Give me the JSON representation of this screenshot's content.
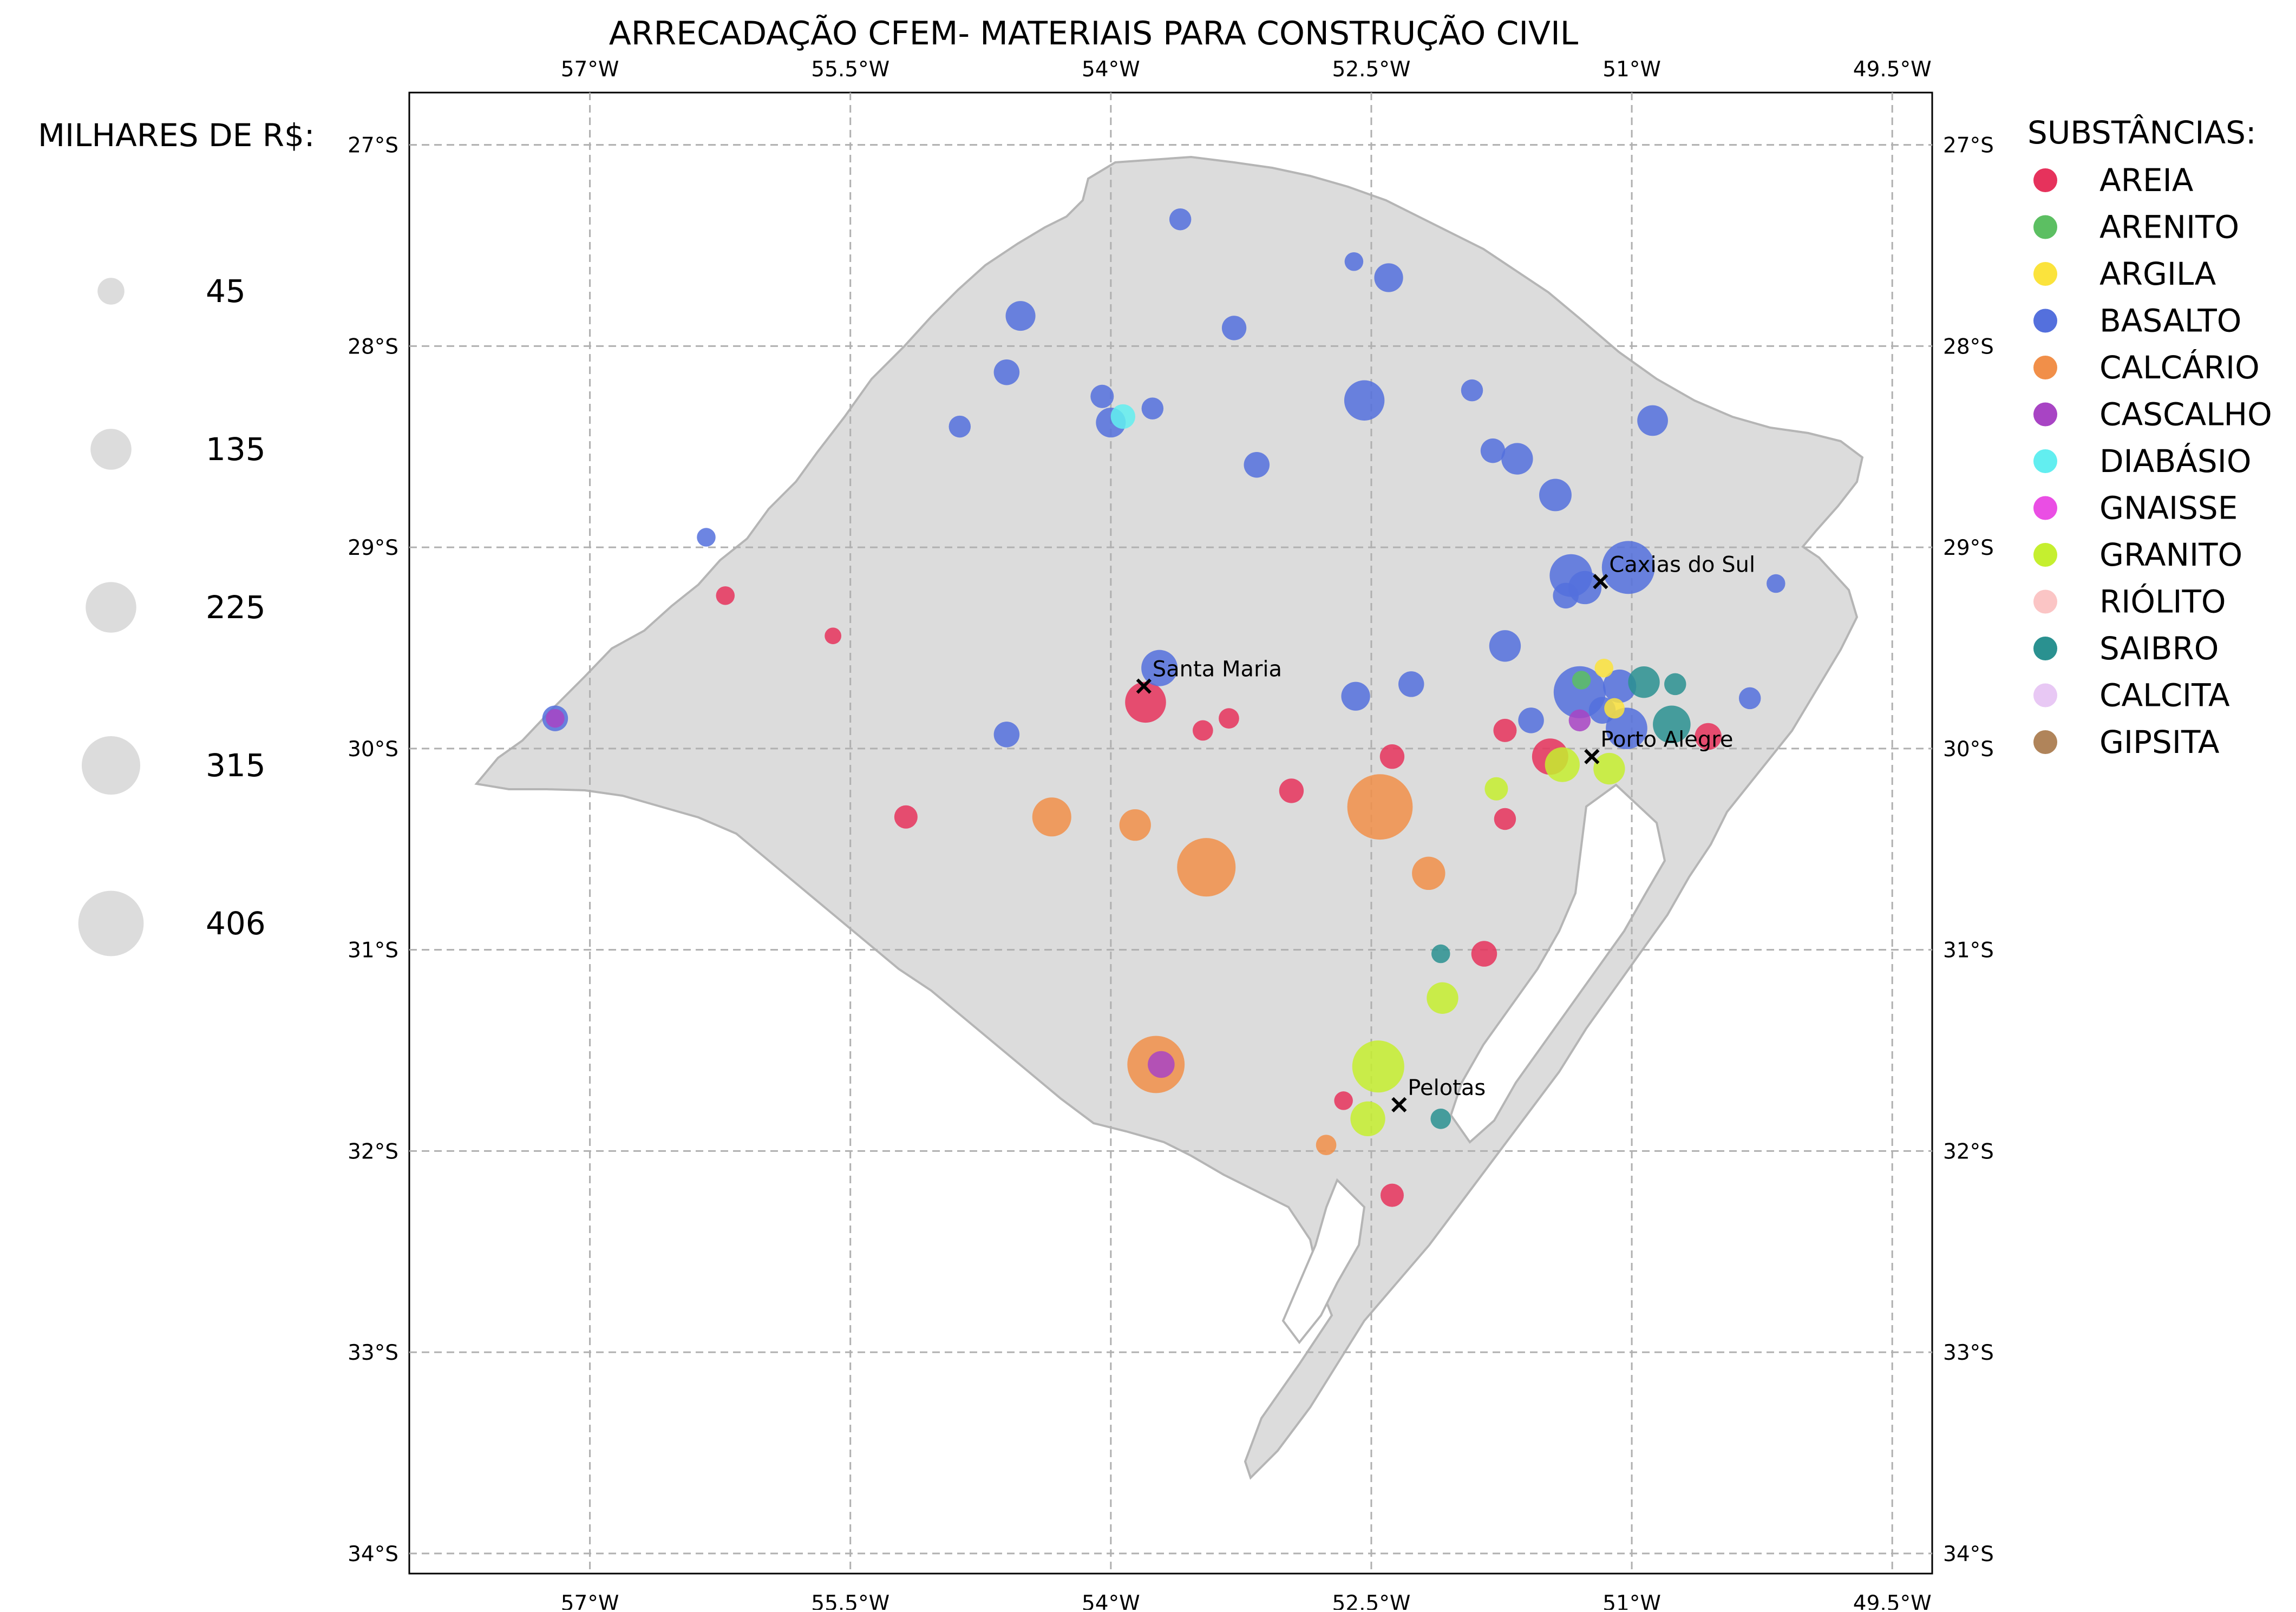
{
  "title": "ARRECADAÇÃO CFEM- MATERIAIS PARA CONSTRUÇÃO CIVIL",
  "x_ticks": [
    "57°W",
    "55.5°W",
    "54°W",
    "52.5°W",
    "51°W",
    "49.5°W"
  ],
  "y_ticks": [
    "27°S",
    "28°S",
    "29°S",
    "30°S",
    "31°S",
    "32°S",
    "33°S",
    "34°S"
  ],
  "axis_ranges": {
    "lon": [
      -58.04,
      -49.27
    ],
    "lat": [
      -34.1,
      -26.74
    ]
  },
  "grid": true,
  "size_legend": {
    "title": "MILHARES DE R$:",
    "items": [
      {
        "label": "45",
        "value": 45
      },
      {
        "label": "135",
        "value": 135
      },
      {
        "label": "225",
        "value": 225
      },
      {
        "label": "315",
        "value": 315
      },
      {
        "label": "406",
        "value": 406
      }
    ]
  },
  "substance_legend": {
    "title": "SUBSTÂNCIAS:",
    "items": [
      {
        "label": "AREIA",
        "color": "#e6325c"
      },
      {
        "label": "ARENITO",
        "color": "#5cbf62"
      },
      {
        "label": "ARGILA",
        "color": "#fbe33c"
      },
      {
        "label": "BASALTO",
        "color": "#5470dd"
      },
      {
        "label": "CALCÁRIO",
        "color": "#f18f49"
      },
      {
        "label": "CASCALHO",
        "color": "#a844c4"
      },
      {
        "label": "DIABÁSIO",
        "color": "#62eef0"
      },
      {
        "label": "GNAISSE",
        "color": "#ea4ee4"
      },
      {
        "label": "GRANITO",
        "color": "#c5ef2f"
      },
      {
        "label": "RIÓLITO",
        "color": "#fbc5c5"
      },
      {
        "label": "SAIBRO",
        "color": "#2a9190"
      },
      {
        "label": "CALCITA",
        "color": "#e8c8f4"
      },
      {
        "label": "GIPSITA",
        "color": "#b0845a"
      }
    ]
  },
  "cities": [
    {
      "name": "Caxias do Sul",
      "lon": -51.18,
      "lat": -29.17
    },
    {
      "name": "Santa Maria",
      "lon": -53.81,
      "lat": -29.69
    },
    {
      "name": "Porto Alegre",
      "lon": -51.23,
      "lat": -30.04
    },
    {
      "name": "Pelotas",
      "lon": -52.34,
      "lat": -31.77
    }
  ],
  "points": [
    {
      "s": "BASALTO",
      "lon": -53.6,
      "lat": -27.37,
      "v": 25
    },
    {
      "s": "BASALTO",
      "lon": -52.6,
      "lat": -27.58,
      "v": 15
    },
    {
      "s": "BASALTO",
      "lon": -52.4,
      "lat": -27.66,
      "v": 55
    },
    {
      "s": "BASALTO",
      "lon": -54.52,
      "lat": -27.85,
      "v": 60
    },
    {
      "s": "BASALTO",
      "lon": -53.29,
      "lat": -27.91,
      "v": 35
    },
    {
      "s": "BASALTO",
      "lon": -54.6,
      "lat": -28.13,
      "v": 40
    },
    {
      "s": "BASALTO",
      "lon": -54.0,
      "lat": -28.38,
      "v": 60
    },
    {
      "s": "BASALTO",
      "lon": -53.76,
      "lat": -28.31,
      "v": 25
    },
    {
      "s": "BASALTO",
      "lon": -54.05,
      "lat": -28.25,
      "v": 30
    },
    {
      "s": "BASALTO",
      "lon": -54.87,
      "lat": -28.4,
      "v": 25
    },
    {
      "s": "BASALTO",
      "lon": -52.54,
      "lat": -28.27,
      "v": 130
    },
    {
      "s": "BASALTO",
      "lon": -53.16,
      "lat": -28.59,
      "v": 40
    },
    {
      "s": "BASALTO",
      "lon": -51.92,
      "lat": -28.22,
      "v": 25
    },
    {
      "s": "BASALTO",
      "lon": -51.66,
      "lat": -28.56,
      "v": 70
    },
    {
      "s": "BASALTO",
      "lon": -51.8,
      "lat": -28.52,
      "v": 35
    },
    {
      "s": "BASALTO",
      "lon": -51.44,
      "lat": -28.74,
      "v": 75
    },
    {
      "s": "BASALTO",
      "lon": -51.35,
      "lat": -29.14,
      "v": 150
    },
    {
      "s": "BASALTO",
      "lon": -51.02,
      "lat": -29.1,
      "v": 250
    },
    {
      "s": "BASALTO",
      "lon": -51.27,
      "lat": -29.2,
      "v": 80
    },
    {
      "s": "BASALTO",
      "lon": -50.88,
      "lat": -28.37,
      "v": 65
    },
    {
      "s": "BASALTO",
      "lon": -51.58,
      "lat": -29.86,
      "v": 40
    },
    {
      "s": "BASALTO",
      "lon": -51.17,
      "lat": -29.81,
      "v": 45
    },
    {
      "s": "BASALTO",
      "lon": -51.3,
      "lat": -29.72,
      "v": 240
    },
    {
      "s": "BASALTO",
      "lon": -51.07,
      "lat": -29.69,
      "v": 80
    },
    {
      "s": "BASALTO",
      "lon": -51.03,
      "lat": -29.9,
      "v": 140
    },
    {
      "s": "BASALTO",
      "lon": -51.38,
      "lat": -29.24,
      "v": 40
    },
    {
      "s": "BASALTO",
      "lon": -51.73,
      "lat": -29.49,
      "v": 70
    },
    {
      "s": "BASALTO",
      "lon": -52.27,
      "lat": -29.68,
      "v": 40
    },
    {
      "s": "BASALTO",
      "lon": -52.59,
      "lat": -29.74,
      "v": 55
    },
    {
      "s": "BASALTO",
      "lon": -53.72,
      "lat": -29.6,
      "v": 100
    },
    {
      "s": "BASALTO",
      "lon": -56.33,
      "lat": -28.95,
      "v": 15
    },
    {
      "s": "BASALTO",
      "lon": -50.32,
      "lat": -29.75,
      "v": 25
    },
    {
      "s": "BASALTO",
      "lon": -50.17,
      "lat": -29.18,
      "v": 15
    },
    {
      "s": "BASALTO",
      "lon": -54.6,
      "lat": -29.93,
      "v": 40
    },
    {
      "s": "BASALTO",
      "lon": -57.2,
      "lat": -29.85,
      "v": 40
    },
    {
      "s": "AREIA",
      "lon": -53.8,
      "lat": -29.77,
      "v": 135
    },
    {
      "s": "AREIA",
      "lon": -51.47,
      "lat": -30.04,
      "v": 100
    },
    {
      "s": "AREIA",
      "lon": -50.56,
      "lat": -29.94,
      "v": 45
    },
    {
      "s": "AREIA",
      "lon": -52.38,
      "lat": -30.04,
      "v": 35
    },
    {
      "s": "AREIA",
      "lon": -52.96,
      "lat": -30.21,
      "v": 35
    },
    {
      "s": "AREIA",
      "lon": -55.18,
      "lat": -30.34,
      "v": 30
    },
    {
      "s": "AREIA",
      "lon": -51.85,
      "lat": -31.02,
      "v": 40
    },
    {
      "s": "AREIA",
      "lon": -52.66,
      "lat": -31.75,
      "v": 15
    },
    {
      "s": "AREIA",
      "lon": -52.38,
      "lat": -32.22,
      "v": 30
    },
    {
      "s": "AREIA",
      "lon": -51.73,
      "lat": -29.91,
      "v": 30
    },
    {
      "s": "AREIA",
      "lon": -51.73,
      "lat": -30.35,
      "v": 25
    },
    {
      "s": "AREIA",
      "lon": -53.47,
      "lat": -29.91,
      "v": 20
    },
    {
      "s": "AREIA",
      "lon": -53.32,
      "lat": -29.85,
      "v": 20
    },
    {
      "s": "AREIA",
      "lon": -56.22,
      "lat": -29.24,
      "v": 15
    },
    {
      "s": "AREIA",
      "lon": -55.6,
      "lat": -29.44,
      "v": 10
    },
    {
      "s": "CALCÁRIO",
      "lon": -52.45,
      "lat": -30.29,
      "v": 406
    },
    {
      "s": "CALCÁRIO",
      "lon": -53.45,
      "lat": -30.59,
      "v": 315
    },
    {
      "s": "CALCÁRIO",
      "lon": -53.74,
      "lat": -31.57,
      "v": 300
    },
    {
      "s": "CALCÁRIO",
      "lon": -54.34,
      "lat": -30.34,
      "v": 120
    },
    {
      "s": "CALCÁRIO",
      "lon": -53.86,
      "lat": -30.38,
      "v": 70
    },
    {
      "s": "CALCÁRIO",
      "lon": -52.17,
      "lat": -30.62,
      "v": 80
    },
    {
      "s": "CALCÁRIO",
      "lon": -52.76,
      "lat": -31.97,
      "v": 20
    },
    {
      "s": "CASCALHO",
      "lon": -53.71,
      "lat": -31.57,
      "v": 45
    },
    {
      "s": "CASCALHO",
      "lon": -51.3,
      "lat": -29.86,
      "v": 25
    },
    {
      "s": "CASCALHO",
      "lon": -57.2,
      "lat": -29.85,
      "v": 15
    },
    {
      "s": "GRANITO",
      "lon": -52.46,
      "lat": -31.58,
      "v": 240
    },
    {
      "s": "GRANITO",
      "lon": -52.52,
      "lat": -31.84,
      "v": 90
    },
    {
      "s": "GRANITO",
      "lon": -52.09,
      "lat": -31.24,
      "v": 70
    },
    {
      "s": "GRANITO",
      "lon": -51.4,
      "lat": -30.08,
      "v": 90
    },
    {
      "s": "GRANITO",
      "lon": -51.13,
      "lat": -30.1,
      "v": 70
    },
    {
      "s": "GRANITO",
      "lon": -51.78,
      "lat": -30.2,
      "v": 30
    },
    {
      "s": "SAIBRO",
      "lon": -50.77,
      "lat": -29.88,
      "v": 110
    },
    {
      "s": "SAIBRO",
      "lon": -50.93,
      "lat": -29.67,
      "v": 70
    },
    {
      "s": "SAIBRO",
      "lon": -50.75,
      "lat": -29.68,
      "v": 25
    },
    {
      "s": "SAIBRO",
      "lon": -52.1,
      "lat": -31.84,
      "v": 20
    },
    {
      "s": "SAIBRO",
      "lon": -52.1,
      "lat": -31.02,
      "v": 15
    },
    {
      "s": "DIABÁSIO",
      "lon": -53.93,
      "lat": -28.35,
      "v": 35
    },
    {
      "s": "ARGILA",
      "lon": -51.1,
      "lat": -29.8,
      "v": 20
    },
    {
      "s": "ARGILA",
      "lon": -51.16,
      "lat": -29.6,
      "v": 15
    },
    {
      "s": "ARENITO",
      "lon": -51.29,
      "lat": -29.66,
      "v": 15
    }
  ]
}
